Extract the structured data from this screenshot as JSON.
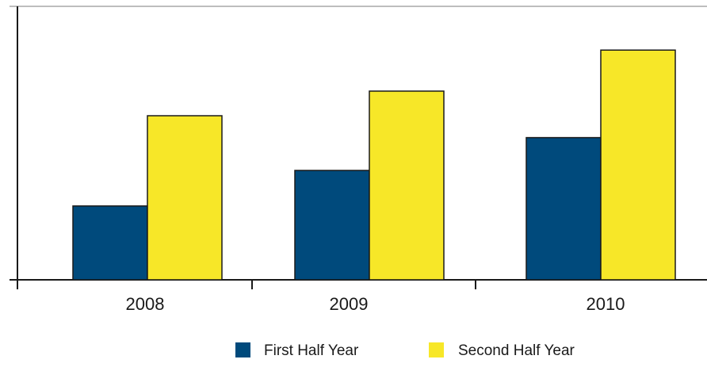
{
  "chart_data": {
    "type": "bar",
    "title": "",
    "xlabel": "",
    "ylabel": "",
    "categories": [
      "2008",
      "2009",
      "2010"
    ],
    "series": [
      {
        "name": "First Half Year",
        "color": "#004a7c",
        "values": [
          27,
          40,
          52
        ]
      },
      {
        "name": "Second Half Year",
        "color": "#f7e728",
        "values": [
          60,
          69,
          84
        ]
      }
    ],
    "ylim": [
      0,
      100
    ],
    "grid": false,
    "legend_position": "bottom"
  }
}
